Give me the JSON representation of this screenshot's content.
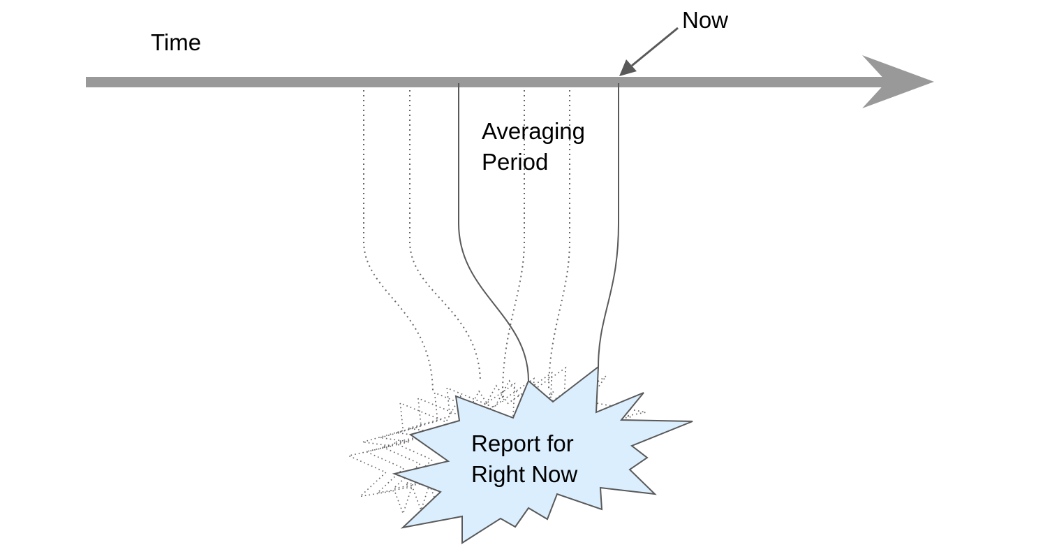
{
  "labels": {
    "time": "Time",
    "now": "Now",
    "averaging_line1": "Averaging",
    "averaging_line2": "Period",
    "report_line1": "Report for",
    "report_line2": "Right Now"
  },
  "colors": {
    "axis": "#999999",
    "now_pointer": "#595959",
    "solid_line": "#595959",
    "dotted_line": "#666666",
    "burst_fill": "#dbeefe",
    "burst_stroke": "#595959",
    "text": "#000000"
  }
}
